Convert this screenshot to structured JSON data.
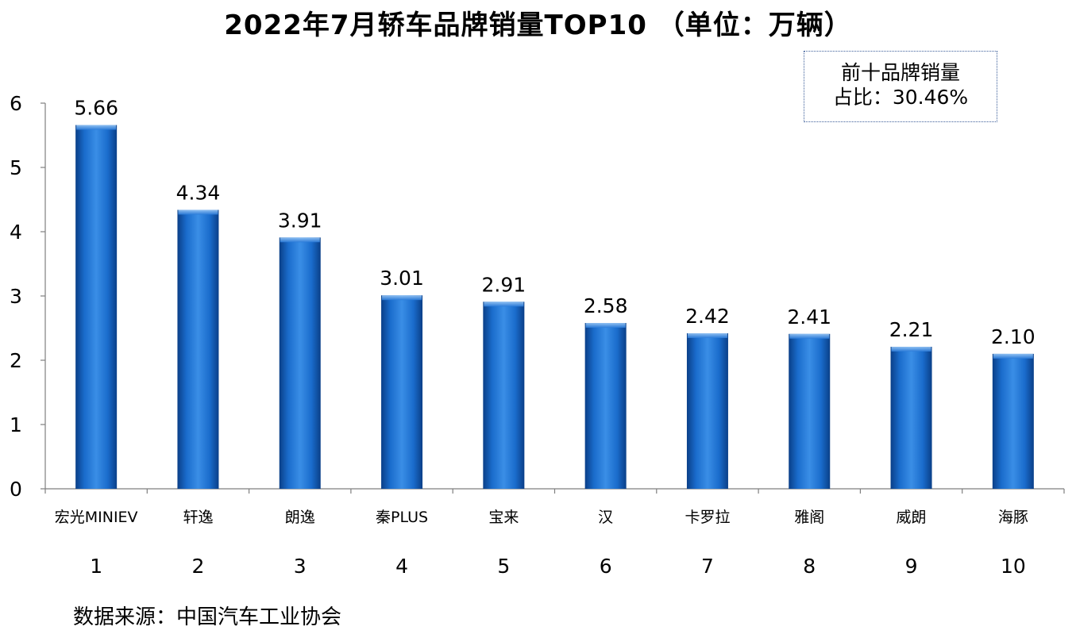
{
  "chart_data": {
    "type": "bar",
    "title": "2022年7月轿车品牌销量TOP10 （单位：万辆）",
    "categories": [
      "宏光MINIEV",
      "轩逸",
      "朗逸",
      "秦PLUS",
      "宝来",
      "汉",
      "卡罗拉",
      "雅阁",
      "威朗",
      "海豚"
    ],
    "ranks": [
      "1",
      "2",
      "3",
      "4",
      "5",
      "6",
      "7",
      "8",
      "9",
      "10"
    ],
    "values": [
      5.66,
      4.34,
      3.91,
      3.01,
      2.91,
      2.58,
      2.42,
      2.41,
      2.21,
      2.1
    ],
    "value_labels": [
      "5.66",
      "4.34",
      "3.91",
      "3.01",
      "2.91",
      "2.58",
      "2.42",
      "2.41",
      "2.21",
      "2.10"
    ],
    "yticks": [
      "0",
      "1",
      "2",
      "3",
      "4",
      "5",
      "6"
    ],
    "ylim": [
      0,
      6
    ],
    "xlabel": "",
    "ylabel": "",
    "grid": false,
    "bar_color": "#1565c0",
    "annotation": {
      "line1": "前十品牌销量",
      "line2": "占比：30.46%"
    },
    "source": "数据来源：中国汽车工业协会"
  }
}
